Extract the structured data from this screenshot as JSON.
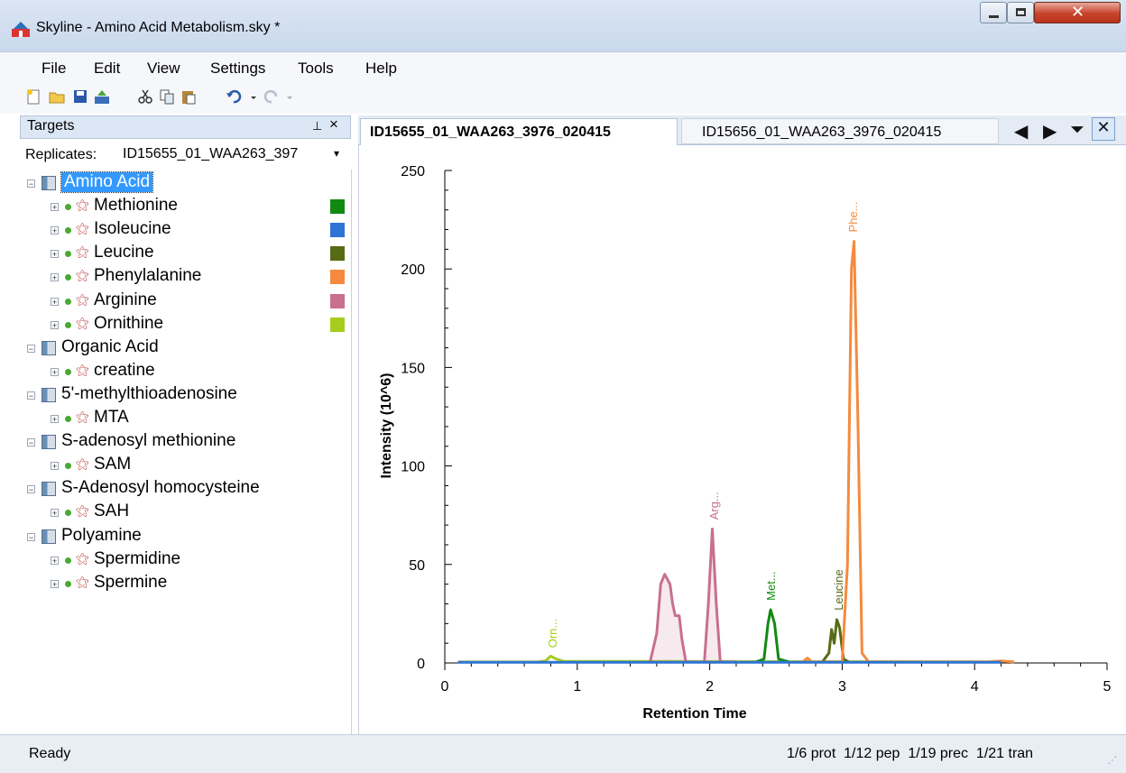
{
  "window": {
    "title": "Skyline - Amino Acid Metabolism.sky *"
  },
  "menu": [
    "File",
    "Edit",
    "View",
    "Settings",
    "Tools",
    "Help"
  ],
  "toolbar": [
    "new-icon",
    "open-icon",
    "save-icon",
    "import-icon",
    "cut-icon",
    "copy-icon",
    "paste-icon",
    "undo-icon",
    "redo-icon"
  ],
  "targets": {
    "title": "Targets",
    "pin": "1",
    "close": "×",
    "replicates_label": "Replicates:",
    "replicate_value": "ID15655_01_WAA263_397",
    "tree": [
      {
        "level": 0,
        "label": "Amino Acid",
        "selected": true
      },
      {
        "level": 1,
        "label": "Methionine",
        "color": "#118a11"
      },
      {
        "level": 1,
        "label": "Isoleucine",
        "color": "#2d74d4"
      },
      {
        "level": 1,
        "label": "Leucine",
        "color": "#566b13"
      },
      {
        "level": 1,
        "label": "Phenylalanine",
        "color": "#f58a3e"
      },
      {
        "level": 1,
        "label": "Arginine",
        "color": "#c8708c"
      },
      {
        "level": 1,
        "label": "Ornithine",
        "color": "#a6cc1e"
      },
      {
        "level": 0,
        "label": "Organic Acid"
      },
      {
        "level": 1,
        "label": "creatine"
      },
      {
        "level": 0,
        "label": "5'-methylthioadenosine"
      },
      {
        "level": 1,
        "label": "MTA"
      },
      {
        "level": 0,
        "label": "S-adenosyl methionine"
      },
      {
        "level": 1,
        "label": "SAM"
      },
      {
        "level": 0,
        "label": "S-Adenosyl homocysteine"
      },
      {
        "level": 1,
        "label": "SAH"
      },
      {
        "level": 0,
        "label": "Polyamine"
      },
      {
        "level": 1,
        "label": "Spermidine"
      },
      {
        "level": 1,
        "label": "Spermine"
      }
    ]
  },
  "tabs": [
    {
      "label": "ID15655_01_WAA263_3976_020415",
      "active": true
    },
    {
      "label": "ID15656_01_WAA263_3976_020415",
      "active": false
    }
  ],
  "chart_data": {
    "type": "line",
    "xlabel": "Retention Time",
    "ylabel": "Intensity (10^6)",
    "xlim": [
      0,
      5
    ],
    "ylim": [
      0,
      250
    ],
    "xticks": [
      "0",
      "1",
      "2",
      "3",
      "4",
      "5"
    ],
    "yticks": [
      "0",
      "50",
      "100",
      "150",
      "200",
      "250"
    ],
    "series": [
      {
        "name": "Ornithine",
        "color": "#a6cc1e",
        "label": "Orn...",
        "labelAt": [
          0.81,
          4
        ],
        "points": [
          [
            0.1,
            0.5
          ],
          [
            0.7,
            0.5
          ],
          [
            0.76,
            1
          ],
          [
            0.8,
            3.5
          ],
          [
            0.84,
            2
          ],
          [
            0.9,
            0.8
          ],
          [
            1.7,
            0.8
          ],
          [
            4.2,
            0.6
          ]
        ]
      },
      {
        "name": "Arginine",
        "color": "#c8708c",
        "label": "Arg...",
        "labelAt": [
          2.03,
          69
        ],
        "fill": true,
        "points": [
          [
            1.55,
            0.5
          ],
          [
            1.6,
            15
          ],
          [
            1.63,
            40
          ],
          [
            1.66,
            45
          ],
          [
            1.7,
            40
          ],
          [
            1.72,
            30
          ],
          [
            1.74,
            24
          ],
          [
            1.77,
            24
          ],
          [
            1.79,
            12
          ],
          [
            1.82,
            0.5
          ],
          [
            1.96,
            0.5
          ],
          [
            1.99,
            30
          ],
          [
            2.02,
            68
          ],
          [
            2.05,
            30
          ],
          [
            2.08,
            0.5
          ],
          [
            2.2,
            0.5
          ]
        ]
      },
      {
        "name": "Methionine",
        "color": "#118a11",
        "label": "Met...",
        "labelAt": [
          2.46,
          28
        ],
        "points": [
          [
            2.35,
            0.5
          ],
          [
            2.41,
            2
          ],
          [
            2.44,
            20
          ],
          [
            2.46,
            27
          ],
          [
            2.49,
            20
          ],
          [
            2.52,
            2
          ],
          [
            2.6,
            0.5
          ]
        ]
      },
      {
        "name": "Leucine",
        "color": "#566b13",
        "label": "Leucine",
        "labelAt": [
          2.97,
          23
        ],
        "points": [
          [
            2.85,
            0.5
          ],
          [
            2.9,
            5
          ],
          [
            2.92,
            17
          ],
          [
            2.94,
            10
          ],
          [
            2.96,
            22
          ],
          [
            2.98,
            18
          ],
          [
            3.01,
            2
          ],
          [
            3.05,
            0.5
          ]
        ]
      },
      {
        "name": "Phenylalanine",
        "color": "#f58a3e",
        "label": "Phe...",
        "labelAt": [
          3.08,
          215
        ],
        "points": [
          [
            2.7,
            0.5
          ],
          [
            2.74,
            2.5
          ],
          [
            2.77,
            0.5
          ],
          [
            3.0,
            0.5
          ],
          [
            3.04,
            50
          ],
          [
            3.07,
            200
          ],
          [
            3.09,
            214
          ],
          [
            3.12,
            120
          ],
          [
            3.15,
            5
          ],
          [
            3.2,
            0.5
          ],
          [
            4.1,
            0.5
          ],
          [
            4.2,
            1
          ],
          [
            4.3,
            0.5
          ]
        ]
      },
      {
        "name": "Isoleucine",
        "color": "#2d74d4",
        "points": [
          [
            0.1,
            0.3
          ],
          [
            4.2,
            0.3
          ]
        ]
      }
    ]
  },
  "status": {
    "left": "Ready",
    "right": "1/6 prot  1/12 pep  1/19 prec  1/21 tran"
  }
}
